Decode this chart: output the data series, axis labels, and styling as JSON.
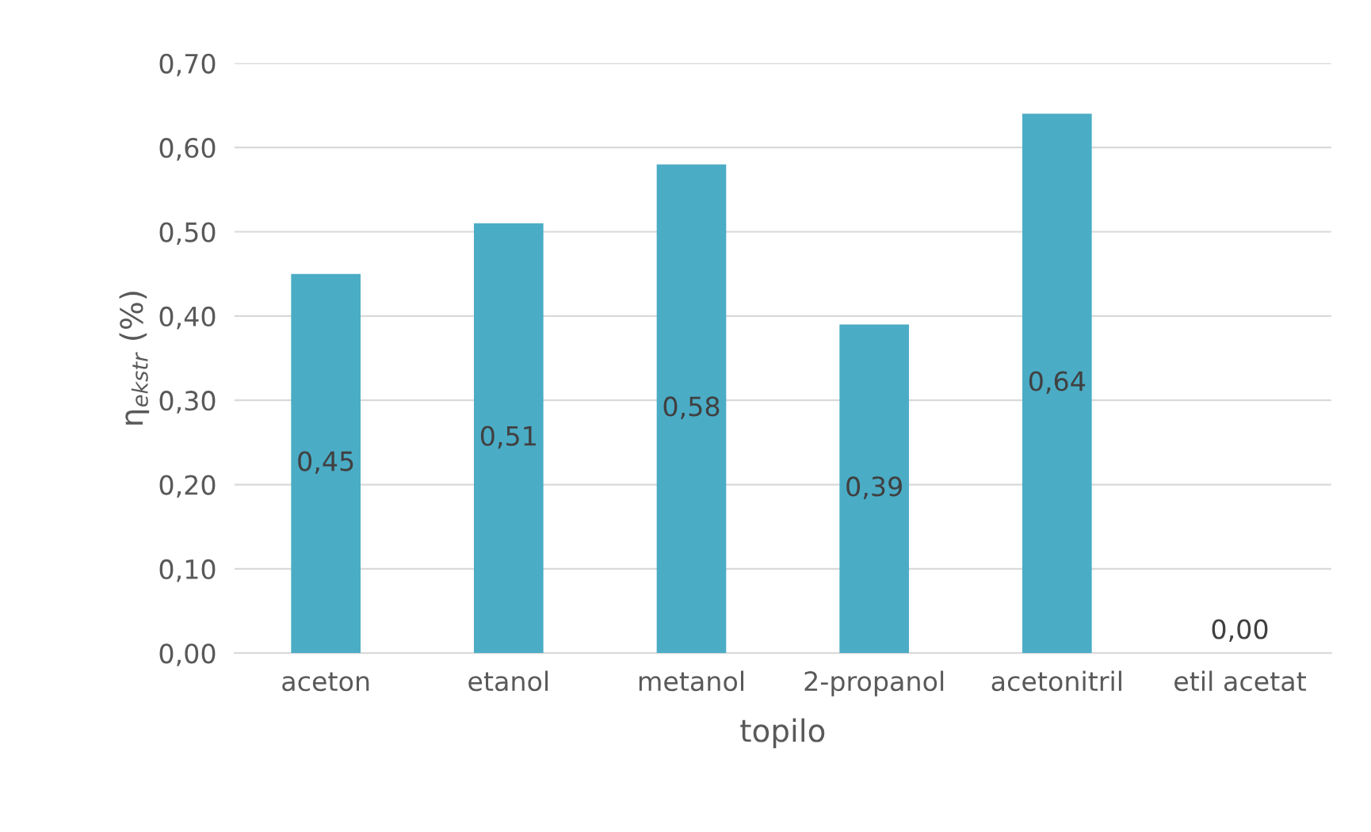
{
  "chart_data": {
    "type": "bar",
    "xlabel": "topilo",
    "ylabel": "η$_{ekstr}$ (%)",
    "categories": [
      "aceton",
      "etanol",
      "metanol",
      "2-propanol",
      "acetonitril",
      "etil acetat"
    ],
    "values": [
      0.45,
      0.51,
      0.58,
      0.39,
      0.64,
      0.0
    ],
    "value_labels": [
      "0,45",
      "0,51",
      "0,58",
      "0,39",
      "0,64",
      "0,00"
    ],
    "color": "#4bacc6",
    "ylim": [
      0,
      0.7
    ],
    "yticks": [
      {
        "value": 0,
        "label": "0,00"
      },
      {
        "value": 0.1,
        "label": "0,10"
      },
      {
        "value": 0.2,
        "label": "0,20"
      },
      {
        "value": 0.3,
        "label": "0,30"
      },
      {
        "value": 0.4,
        "label": "0,40"
      },
      {
        "value": 0.5,
        "label": "0,50"
      },
      {
        "value": 0.6,
        "label": "0,60"
      },
      {
        "value": 0.7,
        "label": "0,70"
      }
    ],
    "grid": "y"
  }
}
